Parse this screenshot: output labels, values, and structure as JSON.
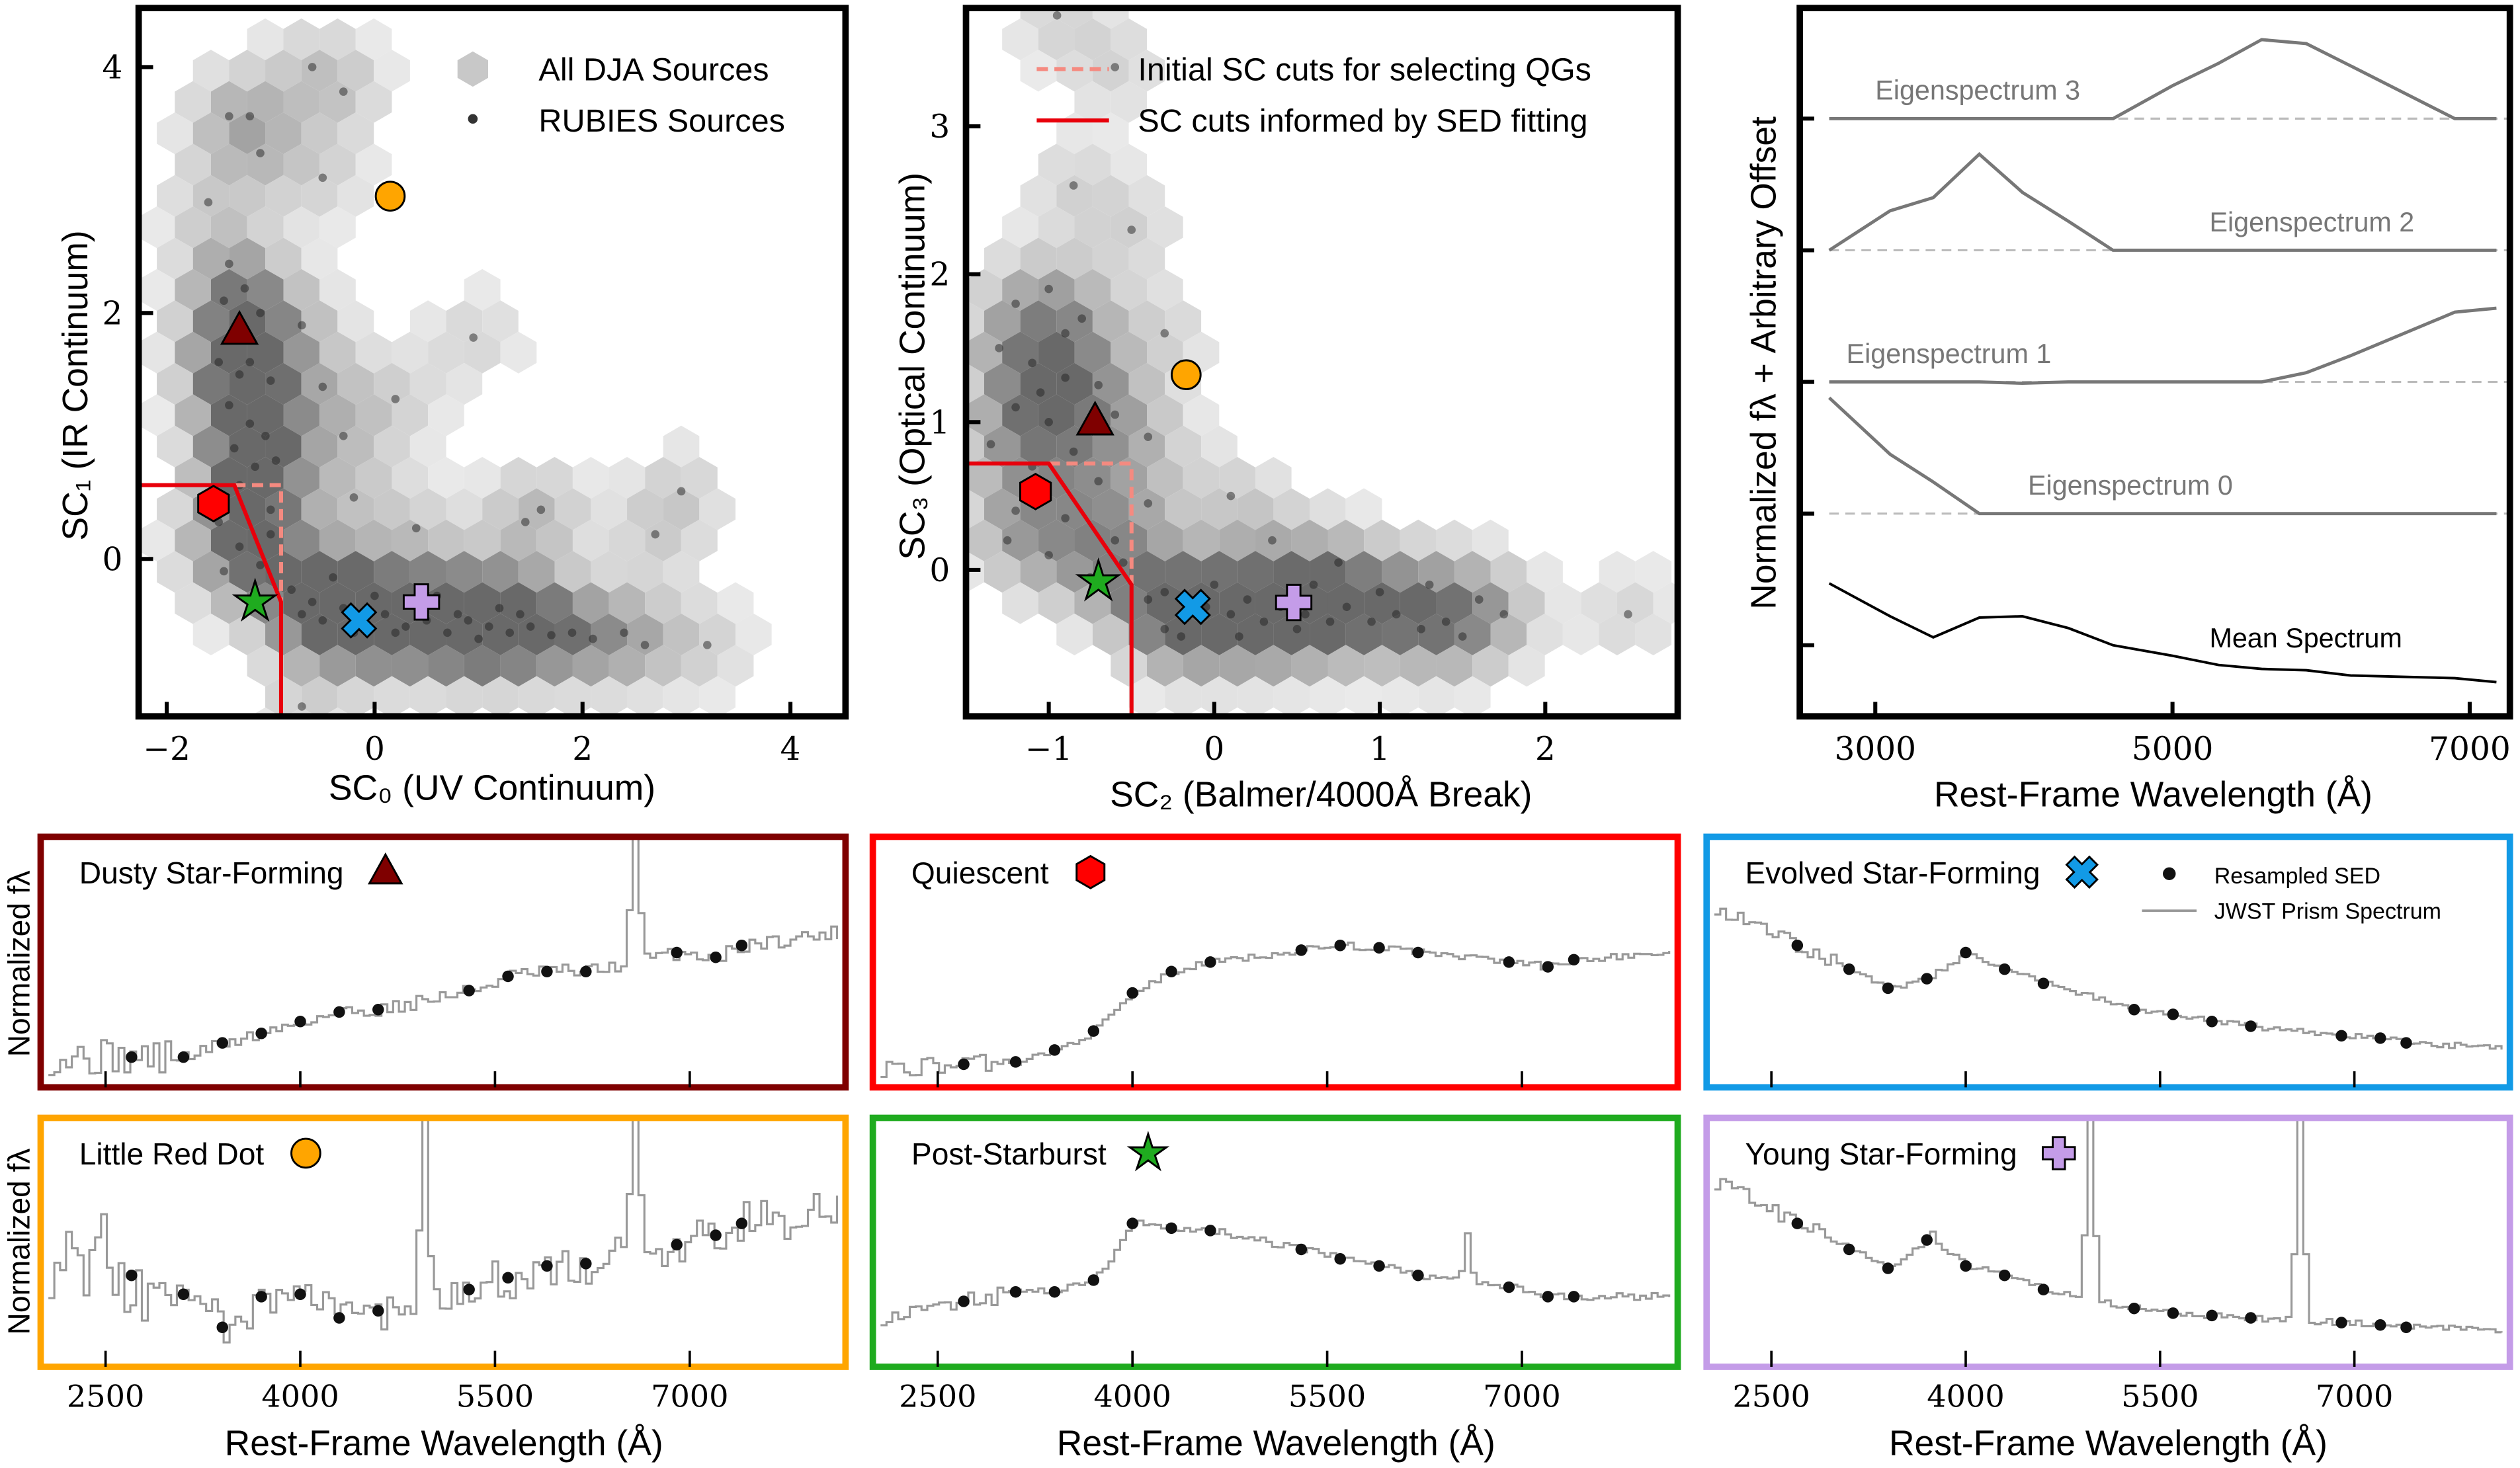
{
  "colors": {
    "dusty": "#7f0000",
    "quiescent": "#ff0000",
    "evolved": "#129ae6",
    "lrd": "#ffa500",
    "psb": "#1fab1f",
    "ysf": "#c49ce8",
    "cut_initial": "#f58a80",
    "cut_sed": "#e8000b",
    "eigen": "#777777"
  },
  "chart_data": [
    {
      "type": "scatter",
      "xlabel": "SC₀ (UV Continuum)",
      "ylabel": "SC₁ (IR Continuum)",
      "xlim": [
        -2.27,
        4.53
      ],
      "ylim": [
        -1.28,
        4.48
      ],
      "xticks": [
        -2,
        0,
        2,
        4
      ],
      "yticks": [
        0,
        2,
        4
      ],
      "xtick_labels": [
        "−2",
        "0",
        "2",
        "4"
      ],
      "ytick_labels": [
        "0",
        "2",
        "4"
      ],
      "legend": {
        "position": "top-right",
        "entries": [
          "All DJA Sources",
          "RUBIES Sources"
        ]
      },
      "cut_sed": [
        [
          -2.3,
          0.6
        ],
        [
          -1.35,
          0.6
        ],
        [
          -0.9,
          -0.35
        ],
        [
          -0.9,
          -1.3
        ]
      ],
      "cut_initial": [
        [
          -1.35,
          0.6
        ],
        [
          -0.9,
          0.6
        ],
        [
          -0.9,
          -0.35
        ]
      ],
      "rubies_points": [
        [
          -1.4,
          3.6
        ],
        [
          -1.2,
          3.6
        ],
        [
          -0.6,
          4.0
        ],
        [
          -0.3,
          3.8
        ],
        [
          -1.1,
          3.3
        ],
        [
          -0.5,
          3.1
        ],
        [
          -1.6,
          2.9
        ],
        [
          -1.4,
          2.4
        ],
        [
          -1.25,
          2.2
        ],
        [
          -1.45,
          2.1
        ],
        [
          -1.1,
          2.0
        ],
        [
          -1.5,
          1.6
        ],
        [
          -1.3,
          1.5
        ],
        [
          -1.0,
          1.45
        ],
        [
          -1.4,
          1.25
        ],
        [
          -1.2,
          1.1
        ],
        [
          -1.05,
          1.0
        ],
        [
          -1.35,
          0.9
        ],
        [
          -1.15,
          0.75
        ],
        [
          -0.95,
          0.8
        ],
        [
          -1.5,
          0.3
        ],
        [
          -1.3,
          0.1
        ],
        [
          -1.45,
          -0.1
        ],
        [
          -1.1,
          -0.05
        ],
        [
          -1.0,
          0.2
        ],
        [
          -0.8,
          -0.25
        ],
        [
          -0.6,
          -0.35
        ],
        [
          -0.5,
          -0.5
        ],
        [
          -0.3,
          -0.4
        ],
        [
          -0.1,
          -0.55
        ],
        [
          0.1,
          -0.45
        ],
        [
          0.3,
          -0.55
        ],
        [
          0.5,
          -0.5
        ],
        [
          0.7,
          -0.6
        ],
        [
          0.9,
          -0.5
        ],
        [
          1.1,
          -0.55
        ],
        [
          1.3,
          -0.6
        ],
        [
          1.5,
          -0.55
        ],
        [
          1.7,
          -0.62
        ],
        [
          1.9,
          -0.6
        ],
        [
          2.1,
          -0.65
        ],
        [
          2.4,
          -0.6
        ],
        [
          2.6,
          -0.7
        ],
        [
          3.2,
          -0.7
        ],
        [
          -0.4,
          -0.15
        ],
        [
          0.0,
          -0.3
        ],
        [
          0.6,
          -0.3
        ],
        [
          1.2,
          -0.4
        ],
        [
          -0.2,
          0.5
        ],
        [
          0.4,
          0.25
        ],
        [
          -0.5,
          1.4
        ],
        [
          -0.7,
          1.9
        ],
        [
          0.2,
          1.3
        ],
        [
          1.6,
          0.4
        ],
        [
          2.95,
          0.55
        ],
        [
          2.7,
          0.2
        ],
        [
          1.45,
          0.3
        ],
        [
          -0.7,
          -1.2
        ],
        [
          -0.3,
          1.0
        ],
        [
          0.95,
          1.8
        ],
        [
          -1.35,
          1.8
        ],
        [
          -1.2,
          1.6
        ],
        [
          -1.3,
          0.6
        ],
        [
          -1.0,
          0.4
        ],
        [
          -0.7,
          -0.45
        ],
        [
          -0.2,
          -0.6
        ],
        [
          0.2,
          -0.6
        ],
        [
          0.8,
          -0.45
        ],
        [
          1.0,
          -0.65
        ],
        [
          1.4,
          -0.45
        ]
      ],
      "highlights": [
        {
          "class": "dusty",
          "marker": "triangle",
          "x": -1.3,
          "y": 1.85
        },
        {
          "class": "lrd",
          "marker": "circle",
          "x": 0.15,
          "y": 2.95
        },
        {
          "class": "quiescent",
          "marker": "hexagon",
          "x": -1.55,
          "y": 0.45
        },
        {
          "class": "psb",
          "marker": "star",
          "x": -1.15,
          "y": -0.35
        },
        {
          "class": "evolved",
          "marker": "x",
          "x": -0.15,
          "y": -0.5
        },
        {
          "class": "ysf",
          "marker": "plus",
          "x": 0.45,
          "y": -0.35
        }
      ]
    },
    {
      "type": "scatter",
      "xlabel": "SC₂ (Balmer/4000Å Break)",
      "ylabel": "SC₃ (Optical Continuum)",
      "xlim": [
        -1.5,
        2.8
      ],
      "ylim": [
        -0.99,
        3.8
      ],
      "xticks": [
        -1,
        0,
        1,
        2
      ],
      "yticks": [
        0,
        1,
        2,
        3
      ],
      "xtick_labels": [
        "−1",
        "0",
        "1",
        "2"
      ],
      "ytick_labels": [
        "0",
        "1",
        "2",
        "3"
      ],
      "legend": {
        "position": "top-right",
        "entries": [
          "Initial SC cuts for selecting QGs",
          "SC cuts informed by SED fitting"
        ]
      },
      "cut_sed": [
        [
          -1.55,
          0.72
        ],
        [
          -1.0,
          0.72
        ],
        [
          -0.5,
          -0.1
        ],
        [
          -0.5,
          -1.0
        ]
      ],
      "cut_initial": [
        [
          -1.0,
          0.72
        ],
        [
          -0.5,
          0.72
        ],
        [
          -0.5,
          -0.1
        ]
      ],
      "rubies_points": [
        [
          -1.2,
          1.8
        ],
        [
          -1.0,
          1.9
        ],
        [
          -0.8,
          1.7
        ],
        [
          -1.3,
          1.5
        ],
        [
          -1.1,
          1.4
        ],
        [
          -0.9,
          1.3
        ],
        [
          -0.7,
          1.25
        ],
        [
          -1.2,
          1.1
        ],
        [
          -1.0,
          1.0
        ],
        [
          -0.6,
          1.05
        ],
        [
          -1.35,
          0.85
        ],
        [
          -0.85,
          0.8
        ],
        [
          -1.1,
          0.7
        ],
        [
          -0.7,
          0.6
        ],
        [
          -1.2,
          0.4
        ],
        [
          -0.9,
          0.35
        ],
        [
          -0.6,
          0.2
        ],
        [
          -1.0,
          0.1
        ],
        [
          -0.75,
          -0.05
        ],
        [
          -0.55,
          0.05
        ],
        [
          -0.4,
          -0.2
        ],
        [
          -0.3,
          -0.15
        ],
        [
          -0.2,
          -0.3
        ],
        [
          -0.05,
          -0.25
        ],
        [
          0.1,
          -0.3
        ],
        [
          0.2,
          -0.2
        ],
        [
          0.3,
          -0.35
        ],
        [
          0.4,
          -0.25
        ],
        [
          0.55,
          -0.3
        ],
        [
          0.7,
          -0.35
        ],
        [
          0.8,
          -0.25
        ],
        [
          0.95,
          -0.35
        ],
        [
          1.1,
          -0.3
        ],
        [
          1.25,
          -0.4
        ],
        [
          1.4,
          -0.35
        ],
        [
          1.5,
          -0.45
        ],
        [
          -0.3,
          -0.4
        ],
        [
          0.0,
          -0.1
        ],
        [
          0.6,
          -0.1
        ],
        [
          1.0,
          -0.15
        ],
        [
          -0.5,
          2.3
        ],
        [
          -0.85,
          2.6
        ],
        [
          -0.3,
          1.6
        ],
        [
          -0.4,
          0.9
        ],
        [
          0.1,
          0.5
        ],
        [
          0.35,
          0.2
        ],
        [
          1.6,
          -0.2
        ],
        [
          1.75,
          -0.3
        ],
        [
          2.5,
          -0.3
        ],
        [
          -0.95,
          3.75
        ],
        [
          -0.6,
          3.4
        ],
        [
          0.75,
          0.05
        ],
        [
          1.3,
          -0.1
        ],
        [
          -1.25,
          0.2
        ],
        [
          -0.4,
          0.45
        ],
        [
          -0.9,
          1.6
        ],
        [
          -1.05,
          1.2
        ],
        [
          -0.2,
          -0.45
        ],
        [
          0.15,
          -0.45
        ],
        [
          0.5,
          -0.4
        ]
      ],
      "highlights": [
        {
          "class": "dusty",
          "marker": "triangle",
          "x": -0.72,
          "y": 1.0
        },
        {
          "class": "lrd",
          "marker": "circle",
          "x": -0.17,
          "y": 1.32
        },
        {
          "class": "quiescent",
          "marker": "hexagon",
          "x": -1.08,
          "y": 0.53
        },
        {
          "class": "psb",
          "marker": "star",
          "x": -0.7,
          "y": -0.08
        },
        {
          "class": "evolved",
          "marker": "x",
          "x": -0.13,
          "y": -0.25
        },
        {
          "class": "ysf",
          "marker": "plus",
          "x": 0.48,
          "y": -0.22
        }
      ]
    },
    {
      "type": "line",
      "xlabel": "Rest-Frame Wavelength (Å)",
      "ylabel": "Normalized fλ + Arbitrary Offset",
      "xlim": [
        2500,
        7250
      ],
      "ylim": [
        -0.54,
        4.84
      ],
      "xticks": [
        3000,
        5000,
        7000
      ],
      "xtick_labels": [
        "3000",
        "5000",
        "7000"
      ],
      "yticks": [
        0,
        1,
        2,
        3,
        4
      ],
      "wavelength": [
        2690,
        3100,
        3390,
        3700,
        3990,
        4300,
        4600,
        5000,
        5310,
        5600,
        5900,
        6200,
        6900,
        7180
      ],
      "series": [
        {
          "name": "Mean Spectrum",
          "offset": 0,
          "color": "#000000",
          "values": [
            0.47,
            0.22,
            0.06,
            0.21,
            0.22,
            0.13,
            0,
            -0.08,
            -0.15,
            -0.18,
            -0.19,
            -0.23,
            -0.25,
            -0.28
          ]
        },
        {
          "name": "Eigenspectrum 0",
          "offset": 1,
          "color": "#777777",
          "values": [
            0.88,
            0.45,
            0.24,
            0,
            0,
            0,
            0,
            0,
            0,
            0,
            0,
            0,
            0,
            0
          ]
        },
        {
          "name": "Eigenspectrum 1",
          "offset": 2,
          "color": "#777777",
          "values": [
            0,
            0,
            0,
            0,
            -0.01,
            0,
            0,
            0,
            0,
            0,
            0.07,
            0.2,
            0.53,
            0.56
          ]
        },
        {
          "name": "Eigenspectrum 2",
          "offset": 3,
          "color": "#777777",
          "values": [
            0,
            0.3,
            0.4,
            0.73,
            0.44,
            0.22,
            0,
            0,
            0,
            0,
            0,
            0,
            0,
            0
          ]
        },
        {
          "name": "Eigenspectrum 3",
          "offset": 4,
          "color": "#777777",
          "values": [
            0,
            0,
            0,
            0,
            0,
            0,
            0,
            0.25,
            0.42,
            0.6,
            0.57,
            0.4,
            0,
            0
          ]
        }
      ]
    },
    {
      "type": "line",
      "xlabel": "Rest-Frame Wavelength (Å)",
      "ylabel": "Normalized fλ",
      "xlim": [
        2000,
        8200
      ],
      "xticks": [
        2500,
        4000,
        5500,
        7000
      ],
      "xtick_labels": [
        "2500",
        "4000",
        "5500",
        "7000"
      ],
      "legend": {
        "entries": [
          "Resampled SED",
          "JWST Prism Spectrum"
        ]
      },
      "sed_wavelength": [
        2700,
        3100,
        3400,
        3700,
        4000,
        4300,
        4600,
        5300,
        5600,
        5900,
        6200,
        6900,
        7200,
        7400
      ],
      "panels": [
        {
          "title": "Dusty Star-Forming",
          "class": "dusty",
          "marker": "triangle",
          "sed": [
            0.1,
            0.1,
            0.16,
            0.2,
            0.25,
            0.29,
            0.3,
            0.38,
            0.44,
            0.46,
            0.46,
            0.54,
            0.52,
            0.57
          ],
          "emission_lines": [
            {
              "wavelength": 6560,
              "peak": 1.3
            }
          ]
        },
        {
          "title": "Quiescent",
          "class": "quiescent",
          "marker": "hexagon",
          "sed": [
            0.07,
            0.08,
            0.13,
            0.21,
            0.37,
            0.46,
            0.5,
            0.55,
            0.57,
            0.56,
            0.54,
            0.5,
            0.48,
            0.51
          ],
          "emission_lines": []
        },
        {
          "title": "Evolved Star-Forming",
          "class": "evolved",
          "marker": "x",
          "sed": [
            0.57,
            0.47,
            0.39,
            0.43,
            0.54,
            0.47,
            0.41,
            0.3,
            0.28,
            0.25,
            0.23,
            0.19,
            0.18,
            0.16
          ],
          "emission_lines": []
        },
        {
          "title": "Little Red Dot",
          "class": "lrd",
          "marker": "circle",
          "sed": [
            0.36,
            0.28,
            0.14,
            0.27,
            0.28,
            0.18,
            0.21,
            0.3,
            0.35,
            0.4,
            0.41,
            0.49,
            0.53,
            0.58
          ],
          "emission_lines": [
            {
              "wavelength": 4960,
              "peak": 1.3
            },
            {
              "wavelength": 6560,
              "peak": 1.3
            }
          ]
        },
        {
          "title": "Post-Starburst",
          "class": "psb",
          "marker": "star",
          "sed": [
            0.25,
            0.29,
            0.29,
            0.34,
            0.58,
            0.56,
            0.55,
            0.47,
            0.43,
            0.4,
            0.36,
            0.31,
            0.27,
            0.27
          ],
          "emission_lines": [
            {
              "wavelength": 6560,
              "peak": 0.55
            }
          ]
        },
        {
          "title": "Young Star-Forming",
          "class": "ysf",
          "marker": "plus",
          "sed": [
            0.58,
            0.47,
            0.39,
            0.51,
            0.4,
            0.36,
            0.3,
            0.22,
            0.2,
            0.19,
            0.18,
            0.16,
            0.15,
            0.14
          ],
          "emission_lines": [
            {
              "wavelength": 3727,
              "peak": 0.55
            },
            {
              "wavelength": 4960,
              "peak": 1.3
            },
            {
              "wavelength": 6560,
              "peak": 1.3
            }
          ]
        }
      ]
    }
  ]
}
